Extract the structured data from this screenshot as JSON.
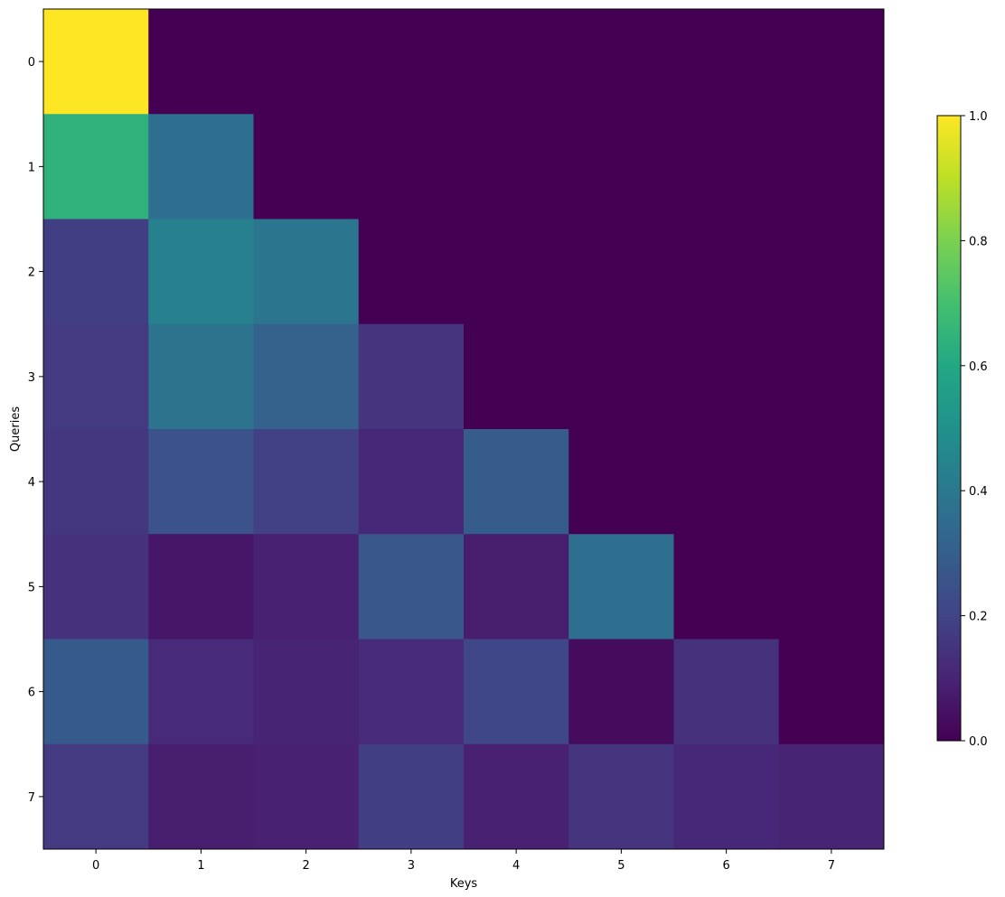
{
  "chart_data": {
    "type": "heatmap",
    "title": "",
    "xlabel": "Keys",
    "ylabel": "Queries",
    "x_ticks": [
      "0",
      "1",
      "2",
      "3",
      "4",
      "5",
      "6",
      "7"
    ],
    "y_ticks": [
      "0",
      "1",
      "2",
      "3",
      "4",
      "5",
      "6",
      "7"
    ],
    "colormap": "viridis",
    "color_range": [
      0.0,
      1.0
    ],
    "colorbar_ticks": [
      "0.0",
      "0.2",
      "0.4",
      "0.6",
      "0.8",
      "1.0"
    ],
    "values": [
      [
        1.0,
        0.0,
        0.0,
        0.0,
        0.0,
        0.0,
        0.0,
        0.0
      ],
      [
        0.64,
        0.36,
        0.0,
        0.0,
        0.0,
        0.0,
        0.0,
        0.0
      ],
      [
        0.18,
        0.43,
        0.39,
        0.0,
        0.0,
        0.0,
        0.0,
        0.0
      ],
      [
        0.17,
        0.38,
        0.31,
        0.15,
        0.0,
        0.0,
        0.0,
        0.0
      ],
      [
        0.16,
        0.25,
        0.19,
        0.11,
        0.29,
        0.0,
        0.0,
        0.0
      ],
      [
        0.14,
        0.06,
        0.09,
        0.27,
        0.08,
        0.36,
        0.0,
        0.0
      ],
      [
        0.28,
        0.12,
        0.1,
        0.12,
        0.21,
        0.03,
        0.14,
        0.0
      ],
      [
        0.17,
        0.08,
        0.09,
        0.18,
        0.09,
        0.15,
        0.11,
        0.1
      ]
    ]
  }
}
